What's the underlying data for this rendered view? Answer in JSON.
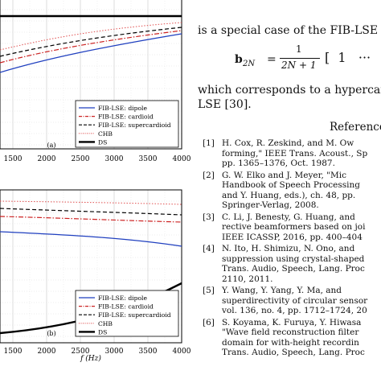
{
  "figure_top": {
    "panel_label": "(a)",
    "x_ticks": [
      "1500",
      "2000",
      "2500",
      "3000",
      "3500",
      "4000"
    ],
    "legend": [
      {
        "label": "FIB-LSE: dipole",
        "color": "#1f3fbf",
        "style": "solid"
      },
      {
        "label": "FIB-LSE: cardioid",
        "color": "#cc2222",
        "style": "dashdot"
      },
      {
        "label": "FIB-LSE: supercardioid",
        "color": "#000000",
        "style": "dashed"
      },
      {
        "label": "CHB",
        "color": "#e05050",
        "style": "dotted"
      },
      {
        "label": "DS",
        "color": "#000000",
        "style": "thick"
      }
    ]
  },
  "figure_bottom": {
    "panel_label": "(b)",
    "x_ticks": [
      "1500",
      "2000",
      "2500",
      "3000",
      "3500",
      "4000"
    ],
    "x_label": "f (Hz)",
    "legend": [
      {
        "label": "FIB-LSE: dipole",
        "color": "#1f3fbf",
        "style": "solid"
      },
      {
        "label": "FIB-LSE: cardioid",
        "color": "#cc2222",
        "style": "dashdot"
      },
      {
        "label": "FIB-LSE: supercardioid",
        "color": "#000000",
        "style": "dashed"
      },
      {
        "label": "CHB",
        "color": "#e05050",
        "style": "dotted"
      },
      {
        "label": "DS",
        "color": "#000000",
        "style": "thick"
      }
    ]
  },
  "text": {
    "line1": "is a special case of the FIB-LSE",
    "eq_lhs": "b",
    "eq_sub": "2N",
    "eq_eq": "=",
    "eq_num": "1",
    "eq_den": "2N + 1",
    "eq_tail": "[  1   ···",
    "line2": "which corresponds to a hypercard",
    "line3": "LSE [30].",
    "refs_heading": "Reference"
  },
  "references": [
    {
      "num": "[1]",
      "lines": [
        "H. Cox, R. Zeskind, and M. Ow",
        "forming,\" IEEE Trans. Acoust., Sp",
        "pp. 1365–1376, Oct. 1987."
      ]
    },
    {
      "num": "[2]",
      "lines": [
        "G. W. Elko and J. Meyer, \"Mic",
        "Handbook of Speech Processing",
        "and Y. Huang, eds.), ch. 48, pp.",
        "Springer-Verlag, 2008."
      ]
    },
    {
      "num": "[3]",
      "lines": [
        "C. Li, J. Benesty, G. Huang, and",
        "rective beamformers based on joi",
        "IEEE ICASSP, 2016, pp. 400–404"
      ]
    },
    {
      "num": "[4]",
      "lines": [
        "N. Ito, H. Shimizu, N. Ono, and",
        "suppression using crystal-shaped",
        "Trans. Audio, Speech, Lang. Proc",
        "2110, 2011."
      ]
    },
    {
      "num": "[5]",
      "lines": [
        "Y. Wang, Y. Yang, Y. Ma, and",
        "superdirectivity of circular sensor",
        "vol. 136, no. 4, pp. 1712–1724, 20"
      ]
    },
    {
      "num": "[6]",
      "lines": [
        "S. Koyama, K. Furuya, Y. Hiwasa",
        "\"Wave field reconstruction filter",
        "domain for with-height recordin",
        "Trans. Audio, Speech, Lang. Proc"
      ]
    }
  ]
}
